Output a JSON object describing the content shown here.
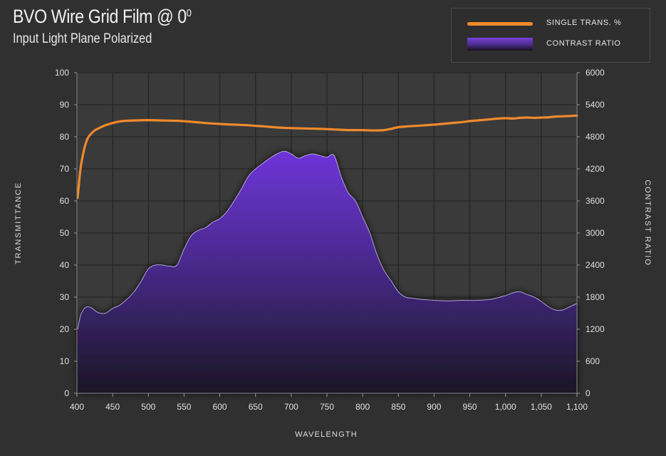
{
  "chart_data": {
    "type": "line",
    "title": "BVO Wire Grid Film @ 0",
    "title_superscript": "0",
    "subtitle": "Input Light Plane Polarized",
    "xlabel": "WAVELENGTH",
    "ylabel": "TRANSMITTANCE",
    "y2label": "CONTRAST RATIO",
    "xlim": [
      400,
      1100
    ],
    "ylim": [
      0,
      100
    ],
    "y2lim": [
      0,
      6000
    ],
    "x_ticks": [
      "400",
      "450",
      "500",
      "550",
      "600",
      "650",
      "700",
      "750",
      "800",
      "850",
      "900",
      "950",
      "1,000",
      "1,050",
      "1,100"
    ],
    "y_ticks": [
      "0",
      "10",
      "20",
      "30",
      "40",
      "50",
      "60",
      "70",
      "80",
      "90",
      "100"
    ],
    "y2_ticks": [
      "0",
      "600",
      "1200",
      "1800",
      "2400",
      "3000",
      "3600",
      "4200",
      "4800",
      "5400",
      "6000"
    ],
    "grid": true,
    "legend_position": "top-right",
    "series": [
      {
        "name": "SINGLE TRANS. %",
        "axis": "left",
        "kind": "line",
        "color": "#f08a2c",
        "x": [
          401,
          405,
          410,
          415,
          420,
          425,
          430,
          440,
          450,
          460,
          470,
          480,
          500,
          520,
          540,
          560,
          580,
          600,
          620,
          640,
          650,
          660,
          670,
          680,
          690,
          700,
          720,
          740,
          750,
          760,
          770,
          780,
          790,
          800,
          810,
          820,
          830,
          840,
          850,
          860,
          880,
          900,
          920,
          940,
          950,
          960,
          970,
          980,
          990,
          1000,
          1010,
          1020,
          1030,
          1040,
          1050,
          1060,
          1070,
          1080,
          1090,
          1100
        ],
        "values": [
          61,
          70,
          76,
          79.5,
          81,
          82,
          82.6,
          83.6,
          84.3,
          84.8,
          85.0,
          85.1,
          85.2,
          85.1,
          85.0,
          84.7,
          84.3,
          84.0,
          83.8,
          83.6,
          83.4,
          83.3,
          83.1,
          82.9,
          82.8,
          82.7,
          82.6,
          82.5,
          82.4,
          82.3,
          82.2,
          82.1,
          82.1,
          82.1,
          82.0,
          82.0,
          82.1,
          82.5,
          83.0,
          83.2,
          83.5,
          83.8,
          84.2,
          84.6,
          84.9,
          85.1,
          85.3,
          85.5,
          85.7,
          85.8,
          85.7,
          85.9,
          86.0,
          85.9,
          86.0,
          86.1,
          86.3,
          86.4,
          86.5,
          86.6
        ]
      },
      {
        "name": "CONTRAST RATIO",
        "axis": "right",
        "kind": "area",
        "color": "#6a36c8",
        "x": [
          401,
          405,
          410,
          415,
          420,
          430,
          440,
          450,
          460,
          470,
          480,
          490,
          500,
          510,
          520,
          530,
          540,
          550,
          560,
          570,
          580,
          590,
          600,
          610,
          620,
          630,
          640,
          650,
          660,
          670,
          680,
          690,
          700,
          710,
          720,
          730,
          740,
          750,
          760,
          770,
          780,
          790,
          800,
          810,
          820,
          830,
          840,
          850,
          860,
          870,
          880,
          890,
          900,
          920,
          940,
          960,
          980,
          1000,
          1010,
          1020,
          1030,
          1040,
          1050,
          1060,
          1070,
          1080,
          1090,
          1100
        ],
        "values": [
          1200,
          1450,
          1580,
          1620,
          1600,
          1510,
          1500,
          1590,
          1650,
          1760,
          1900,
          2100,
          2330,
          2400,
          2400,
          2380,
          2400,
          2700,
          2950,
          3050,
          3100,
          3200,
          3270,
          3400,
          3600,
          3820,
          4060,
          4200,
          4300,
          4400,
          4480,
          4530,
          4480,
          4400,
          4450,
          4480,
          4450,
          4420,
          4450,
          4050,
          3750,
          3600,
          3300,
          3000,
          2600,
          2300,
          2100,
          1900,
          1800,
          1780,
          1760,
          1750,
          1740,
          1730,
          1740,
          1740,
          1760,
          1830,
          1880,
          1900,
          1850,
          1800,
          1720,
          1620,
          1560,
          1560,
          1620,
          1680
        ]
      }
    ]
  }
}
